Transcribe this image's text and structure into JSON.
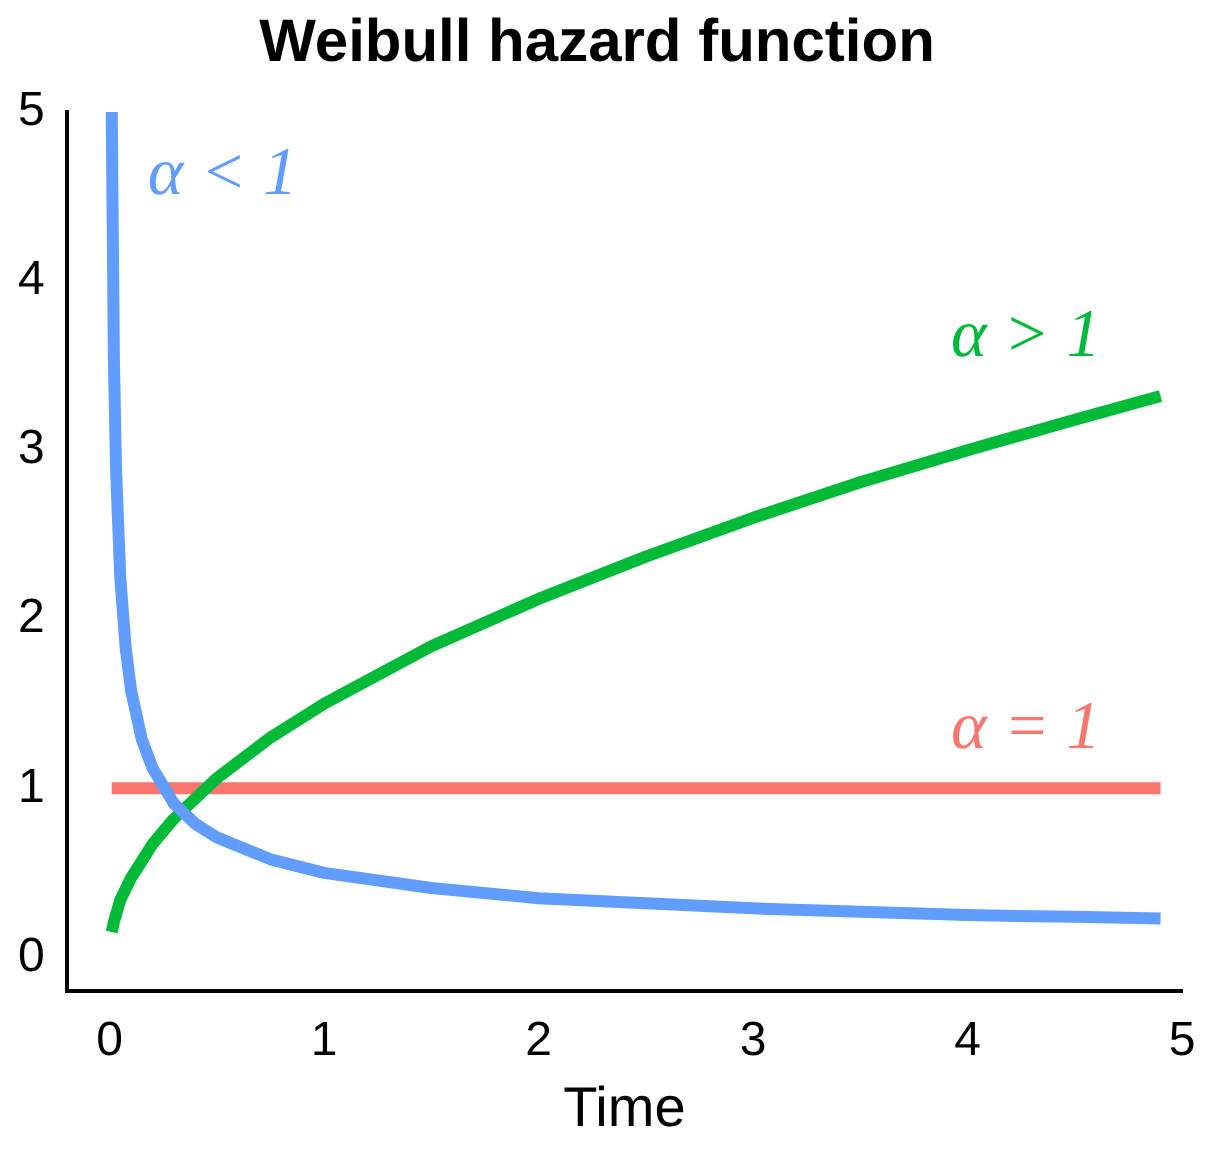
{
  "chart_data": {
    "type": "line",
    "title": "Weibull hazard function",
    "xlabel": "Time",
    "xlim": [
      -0.2,
      5
    ],
    "xticks": [
      0,
      1,
      2,
      3,
      4,
      5
    ],
    "ylim": [
      -0.2,
      5
    ],
    "yticks": [
      0,
      1,
      2,
      3,
      4,
      5
    ],
    "grid": false,
    "legend": false,
    "marker": "none",
    "line_style": "solid",
    "series": [
      {
        "name": "α < 1",
        "color": "#619cff",
        "x": [
          0.01,
          0.02,
          0.03,
          0.05,
          0.075,
          0.1,
          0.15,
          0.2,
          0.3,
          0.4,
          0.5,
          0.75,
          1,
          1.5,
          2,
          2.5,
          3,
          3.5,
          4,
          4.5,
          4.9
        ],
        "values": [
          5.0,
          3.54,
          2.89,
          2.24,
          1.83,
          1.58,
          1.29,
          1.12,
          0.91,
          0.79,
          0.71,
          0.58,
          0.5,
          0.41,
          0.35,
          0.32,
          0.29,
          0.27,
          0.25,
          0.24,
          0.23
        ]
      },
      {
        "name": "α > 1",
        "color": "#00ba38",
        "x": [
          0.01,
          0.02,
          0.05,
          0.1,
          0.2,
          0.3,
          0.5,
          0.75,
          1,
          1.5,
          2,
          2.5,
          3,
          3.5,
          4,
          4.5,
          4.9
        ],
        "values": [
          0.15,
          0.21,
          0.34,
          0.47,
          0.67,
          0.82,
          1.06,
          1.3,
          1.5,
          1.84,
          2.12,
          2.37,
          2.6,
          2.81,
          3.0,
          3.18,
          3.32
        ]
      },
      {
        "name": "α = 1",
        "color": "#f8766d",
        "x": [
          0.01,
          4.9
        ],
        "values": [
          1,
          1
        ]
      }
    ]
  }
}
